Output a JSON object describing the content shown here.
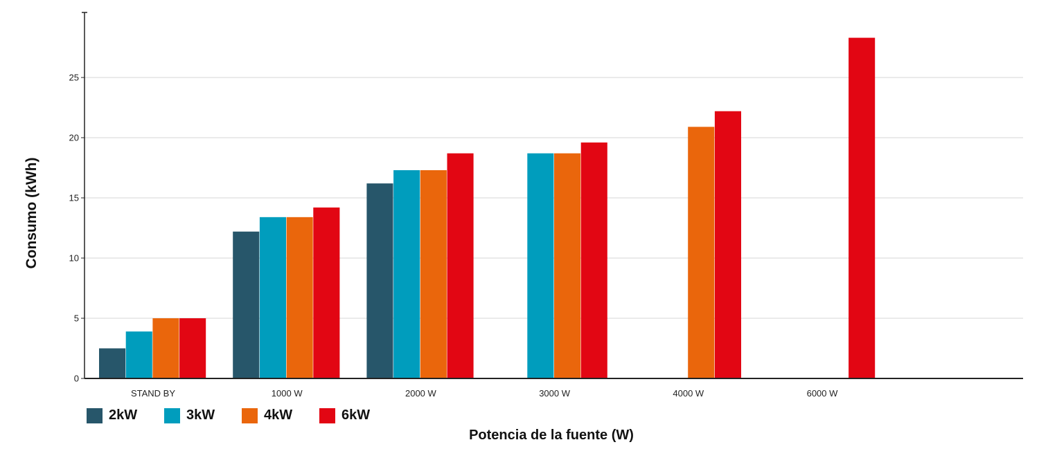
{
  "chart_data": {
    "type": "bar",
    "title": "",
    "xlabel": "Potencia de la fuente (W)",
    "ylabel": "Consumo (kWh)",
    "ylim": [
      0,
      30
    ],
    "yticks": [
      0,
      5,
      10,
      15,
      20,
      25
    ],
    "grid": true,
    "legend_position": "bottom-left",
    "categories": [
      "STAND BY",
      "1000 W",
      "2000 W",
      "3000 W",
      "4000 W",
      "6000 W"
    ],
    "series": [
      {
        "name": "2kW",
        "color": "#27566a",
        "values": [
          2.5,
          12.2,
          16.2,
          null,
          null,
          null
        ]
      },
      {
        "name": "3kW",
        "color": "#009dbd",
        "values": [
          3.9,
          13.4,
          17.3,
          18.7,
          null,
          null
        ]
      },
      {
        "name": "4kW",
        "color": "#ea660c",
        "values": [
          5.0,
          13.4,
          17.3,
          18.7,
          20.9,
          null
        ]
      },
      {
        "name": "6kW",
        "color": "#e20613",
        "values": [
          5.0,
          14.2,
          18.7,
          19.6,
          22.2,
          28.3
        ]
      }
    ]
  }
}
